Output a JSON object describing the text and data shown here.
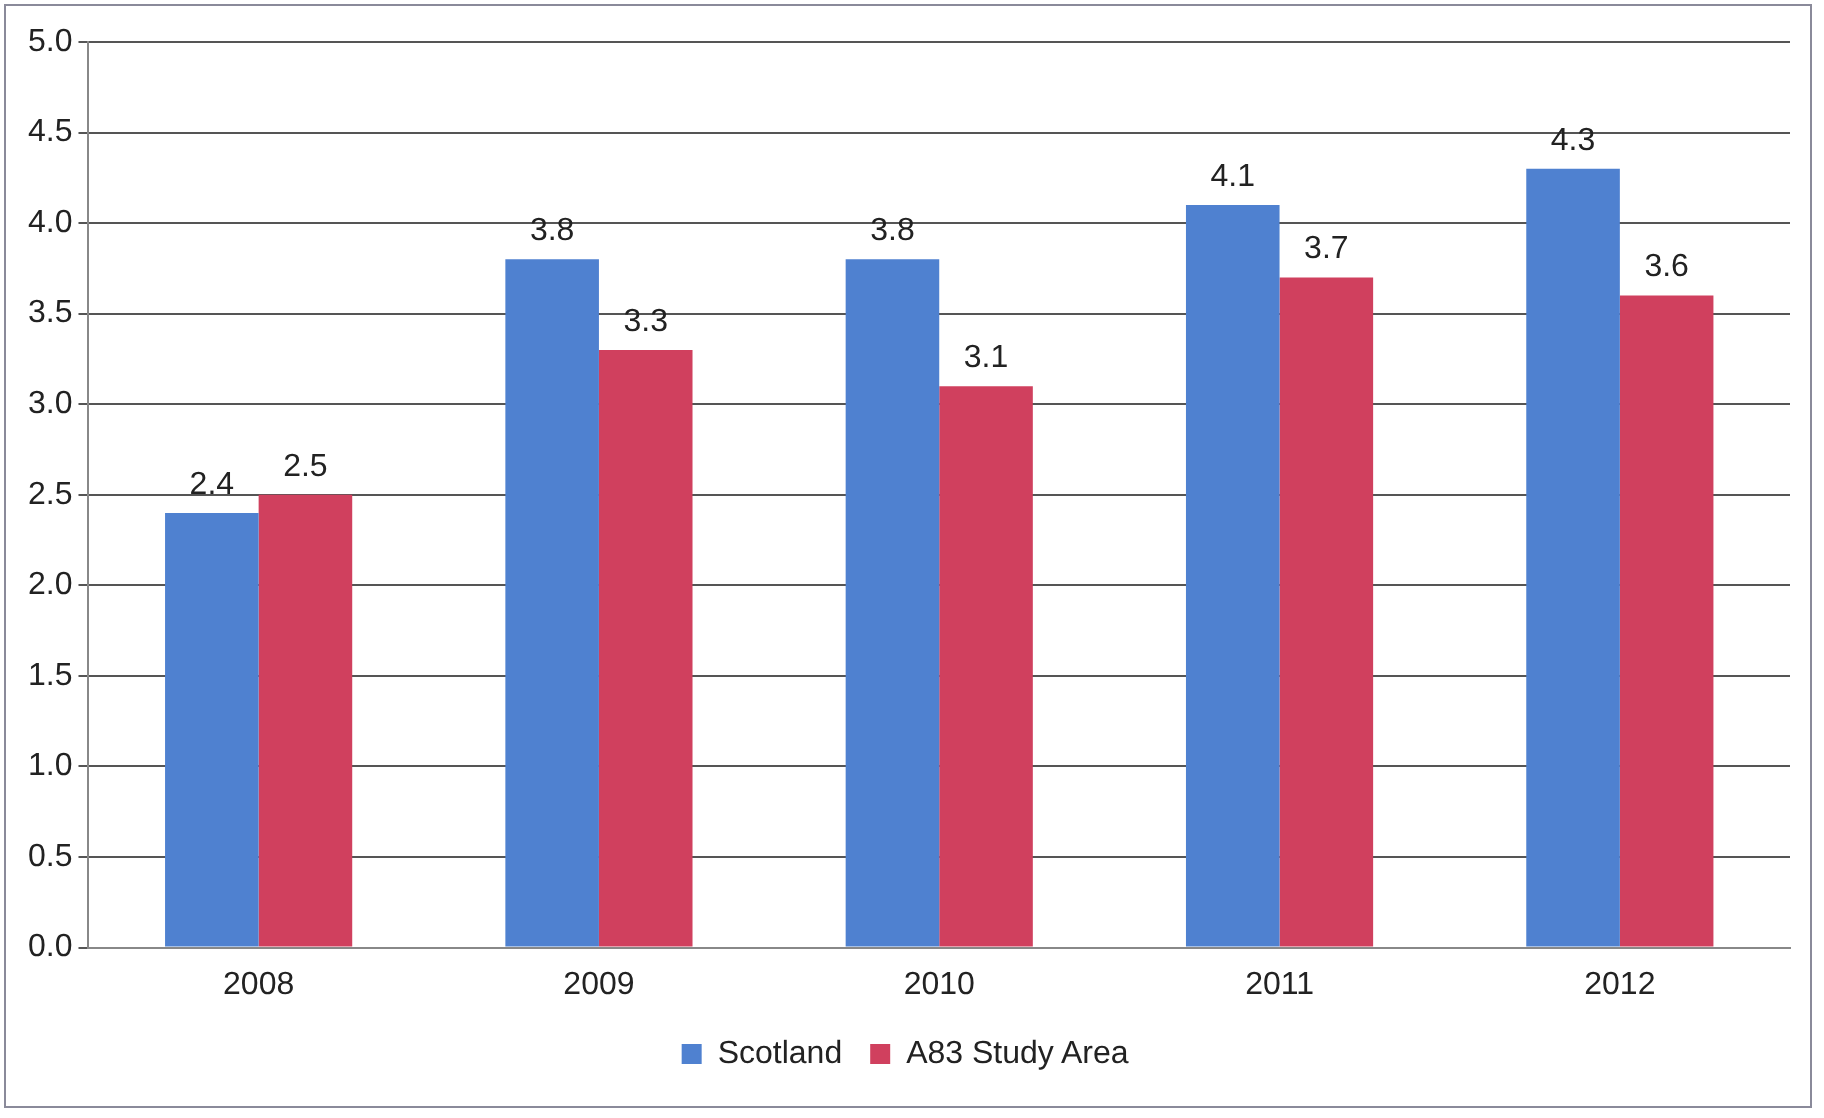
{
  "chart_data": {
    "type": "bar",
    "categories": [
      "2008",
      "2009",
      "2010",
      "2011",
      "2012"
    ],
    "series": [
      {
        "name": "Scotland",
        "color": "#4f81d0",
        "values": [
          2.4,
          3.8,
          3.8,
          4.1,
          4.3
        ]
      },
      {
        "name": "A83 Study Area",
        "color": "#d0405e",
        "values": [
          2.5,
          3.3,
          3.1,
          3.7,
          3.6
        ]
      }
    ],
    "ylim": [
      0,
      5
    ],
    "yticks": [
      {
        "value": 0,
        "label": "0.0"
      },
      {
        "value": 0.5,
        "label": "0.5"
      },
      {
        "value": 1,
        "label": "1.0"
      },
      {
        "value": 1.5,
        "label": "1.5"
      },
      {
        "value": 2,
        "label": "2.0"
      },
      {
        "value": 2.5,
        "label": "2.5"
      },
      {
        "value": 3,
        "label": "3.0"
      },
      {
        "value": 3.5,
        "label": "3.5"
      },
      {
        "value": 4,
        "label": "4.0"
      },
      {
        "value": 4.5,
        "label": "4.5"
      },
      {
        "value": 5,
        "label": "5.0"
      }
    ],
    "grid": "y",
    "legend": "bottom",
    "data_labels": true
  }
}
